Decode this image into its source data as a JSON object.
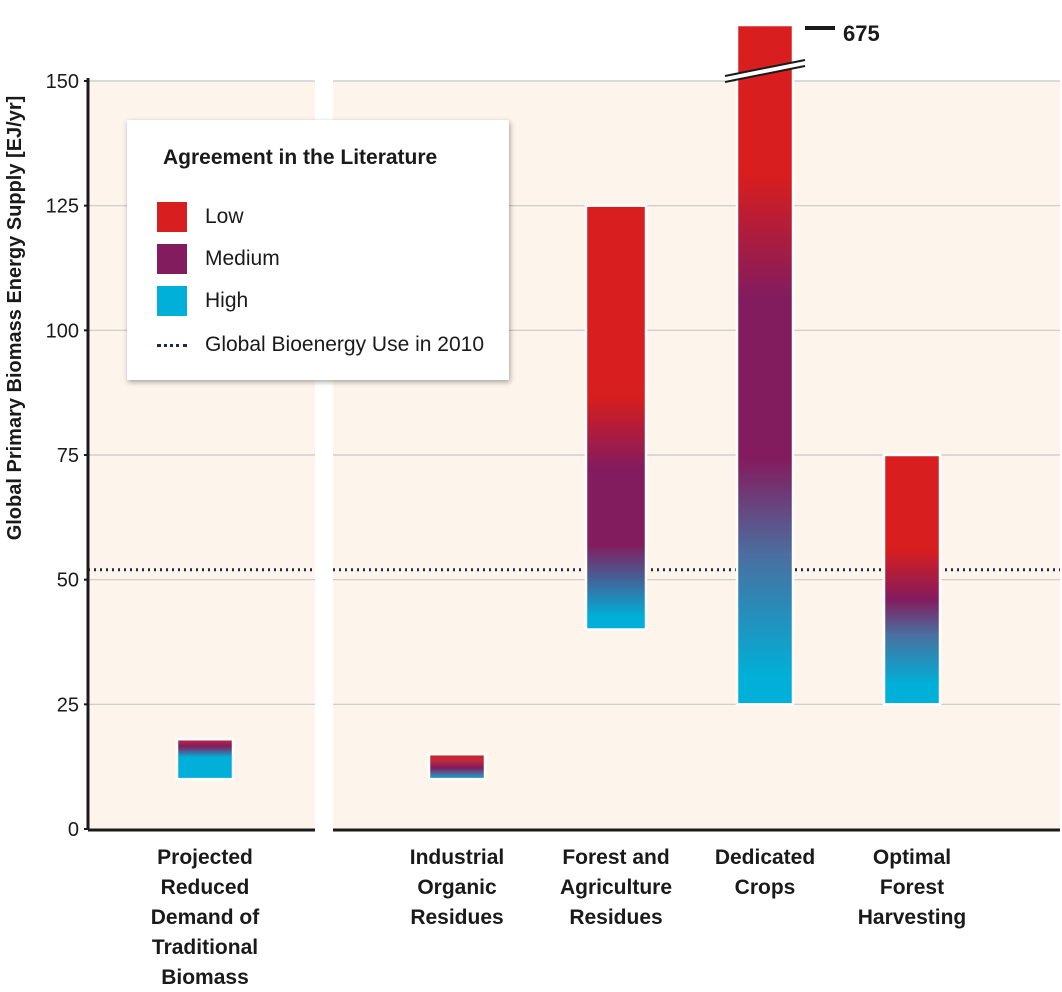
{
  "chart_data": {
    "type": "bar",
    "ylabel": "Global Primary Biomass Energy Supply [EJ/yr]",
    "ylim": [
      0,
      150
    ],
    "yticks": [
      0,
      25,
      50,
      75,
      100,
      125,
      150
    ],
    "grid": true,
    "reference_line": {
      "label": "Global Bioenergy Use in 2010",
      "value": 52
    },
    "categories": [
      {
        "label": [
          "Projected",
          "Reduced",
          "Demand of",
          "Traditional",
          "Biomass"
        ],
        "low": 10,
        "high": 18
      },
      {
        "label": [
          "Industrial",
          "Organic",
          "Residues"
        ],
        "low": 10,
        "high": 15
      },
      {
        "label": [
          "Forest and",
          "Agriculture",
          "Residues"
        ],
        "low": 40,
        "high": 125
      },
      {
        "label": [
          "Dedicated",
          "Crops"
        ],
        "low": 25,
        "high": 675,
        "axis_break": true,
        "break_label": "675"
      },
      {
        "label": [
          "Optimal",
          "Forest",
          "Harvesting"
        ],
        "low": 25,
        "high": 75
      }
    ],
    "legend": {
      "title": "Agreement in the Literature",
      "placement": "top-left",
      "items": [
        {
          "label": "Low",
          "color": "#d81e1e"
        },
        {
          "label": "Medium",
          "color": "#831c5e"
        },
        {
          "label": "High",
          "color": "#00b0d8"
        },
        {
          "label": "Global Bioenergy Use in 2010",
          "style": "dotted"
        }
      ]
    },
    "colors": {
      "background": "#fdf5eb",
      "low": "#d81e1e",
      "medium": "#831c5e",
      "high": "#00b0d8",
      "refline": "#1f2a44"
    }
  }
}
